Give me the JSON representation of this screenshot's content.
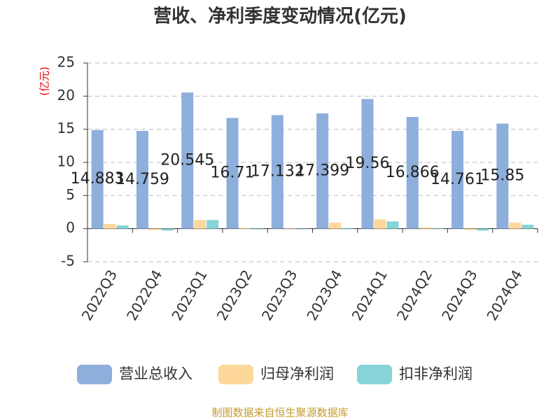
{
  "chart_data": {
    "type": "bar",
    "title": "营收、净利季度变动情况(亿元)",
    "y_label": "(亿元)",
    "categories": [
      "2022Q3",
      "2022Q4",
      "2023Q1",
      "2023Q2",
      "2023Q3",
      "2023Q4",
      "2024Q1",
      "2024Q2",
      "2024Q3",
      "2024Q4"
    ],
    "series": [
      {
        "name": "营业总收入",
        "color": "#8eaedc",
        "values": [
          14.883,
          14.759,
          20.545,
          16.71,
          17.132,
          17.399,
          19.56,
          16.866,
          14.761,
          15.85
        ],
        "show_labels": true
      },
      {
        "name": "归母净利润",
        "color": "#fdd89a",
        "values": [
          0.7,
          -0.2,
          1.3,
          0.1,
          0.05,
          0.9,
          1.4,
          0.2,
          -0.2,
          0.9
        ]
      },
      {
        "name": "扣非净利润",
        "color": "#86d4d8",
        "values": [
          0.5,
          -0.3,
          1.3,
          -0.1,
          -0.1,
          0.1,
          1.1,
          0.1,
          -0.3,
          0.6
        ]
      }
    ],
    "ylim": [
      -5,
      25
    ],
    "yticks": [
      -5,
      0,
      5,
      10,
      15,
      20,
      25
    ],
    "grid": true,
    "legend": "bottom",
    "source": "制图数据来自恒生聚源数据库"
  }
}
